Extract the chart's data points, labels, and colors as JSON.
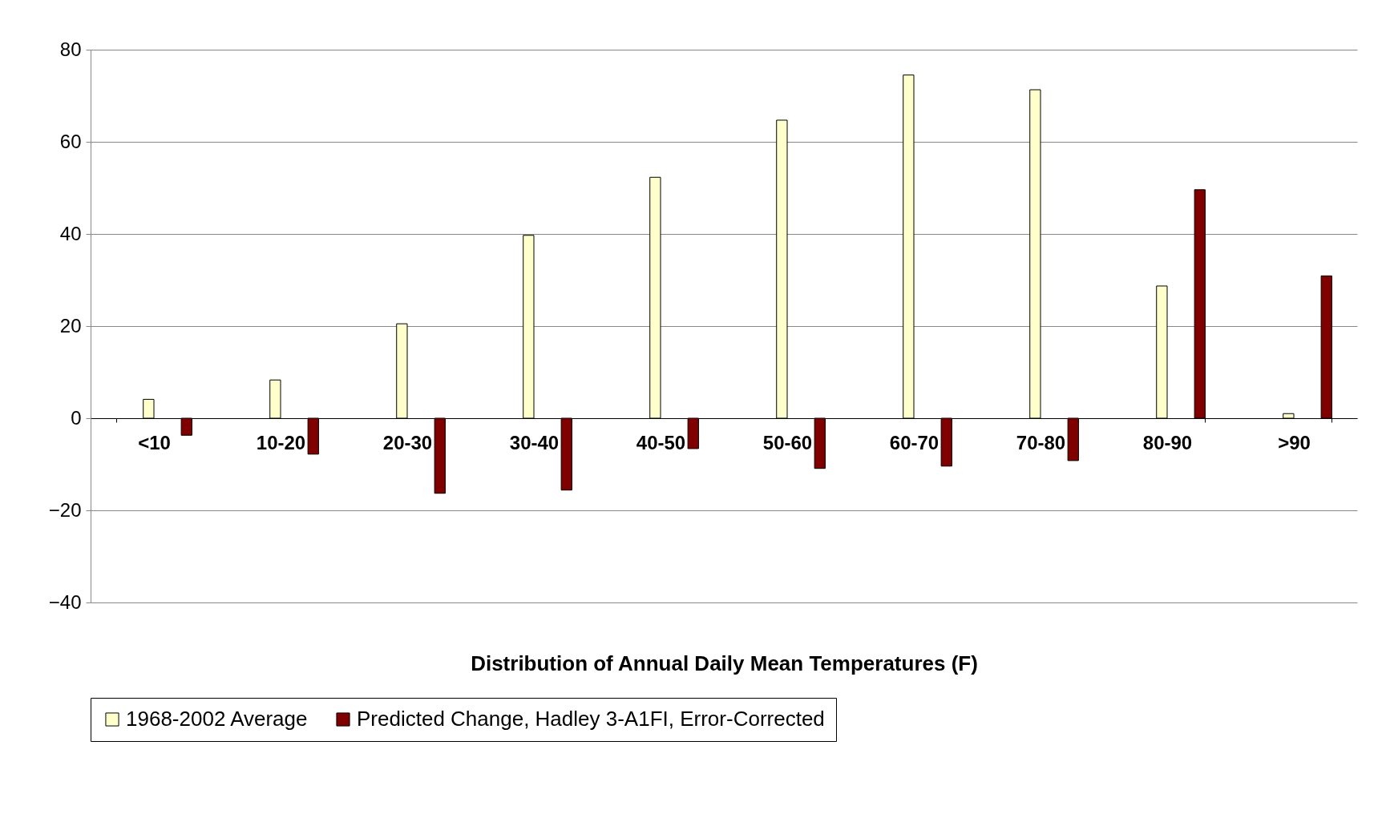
{
  "chart_data": {
    "type": "bar",
    "xlabel": "Distribution of Annual Daily Mean Temperatures (F)",
    "categories": [
      "<10",
      "10-20",
      "20-30",
      "30-40",
      "40-50",
      "50-60",
      "60-70",
      "70-80",
      "80-90",
      ">90"
    ],
    "series": [
      {
        "name": "1968-2002 Average",
        "color": "#ffffcc",
        "values": [
          4.1,
          8.3,
          20.5,
          39.7,
          52.3,
          64.7,
          74.5,
          71.3,
          28.7,
          1.0
        ]
      },
      {
        "name": "Predicted Change, Hadley 3-A1FI, Error-Corrected",
        "color": "#800000",
        "values": [
          -3.7,
          -7.8,
          -16.3,
          -15.6,
          -6.6,
          -10.9,
          -10.4,
          -9.2,
          49.6,
          30.9
        ]
      }
    ],
    "ylim": [
      -40,
      80
    ],
    "yticks": [
      -40,
      -20,
      0,
      20,
      40,
      60,
      80
    ],
    "grid": "y",
    "legend": "bottom"
  }
}
